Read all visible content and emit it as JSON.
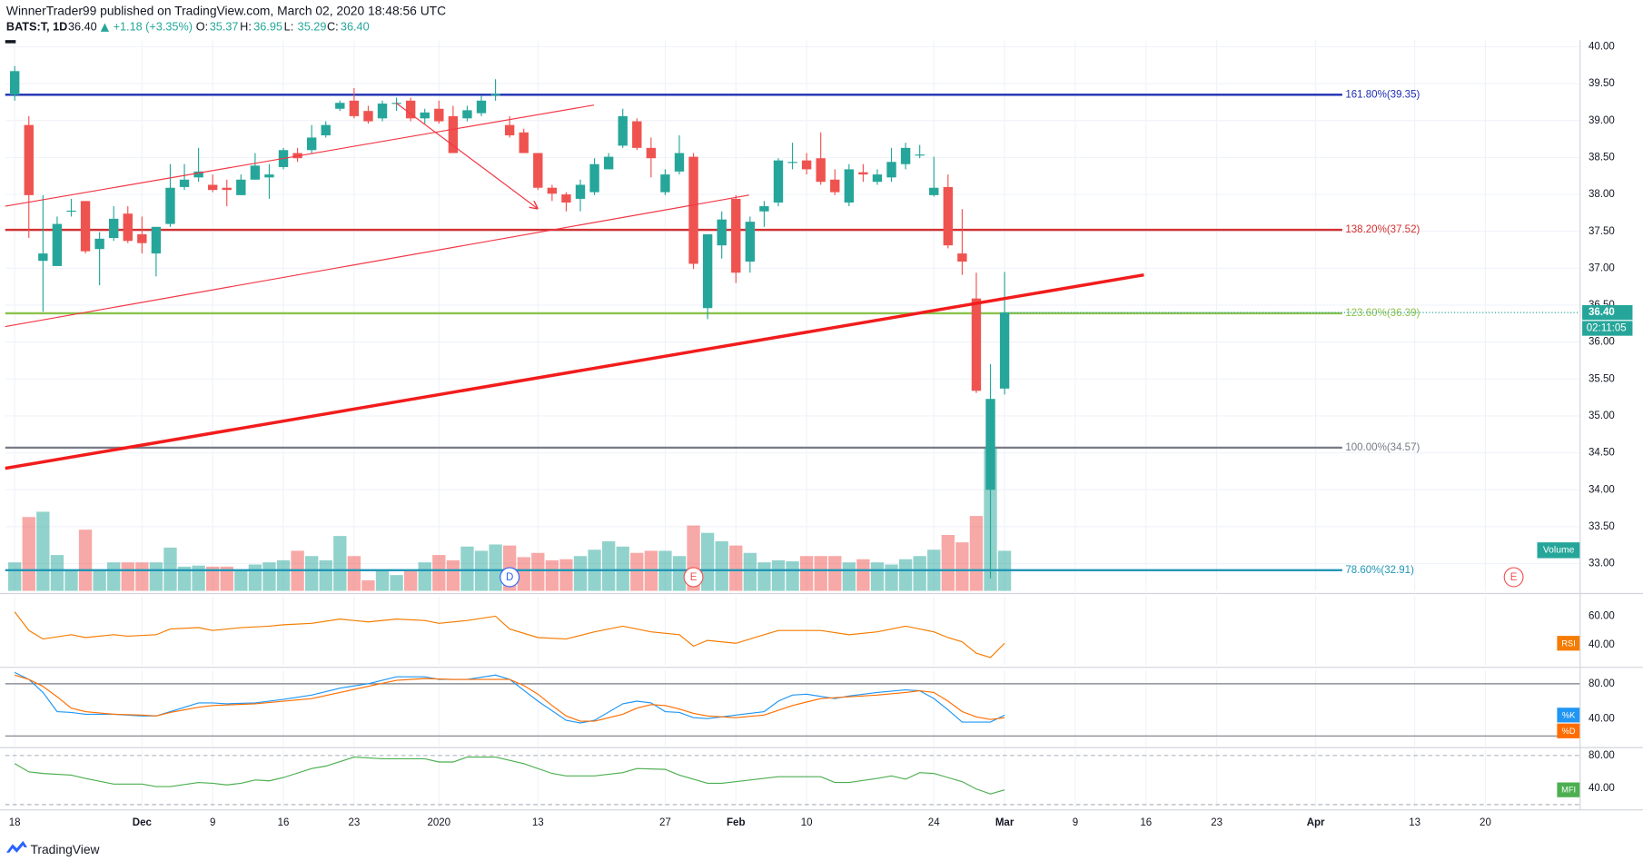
{
  "header": {
    "publisher": "WinnerTrader99 published on TradingView.com, March 02, 2020 18:48:56 UTC",
    "symbol": "BATS:T, 1D",
    "last": "36.40",
    "change": "+1.18 (+3.35%)",
    "ohlc": [
      {
        "label": "O:",
        "value": "35.37"
      },
      {
        "label": "H:",
        "value": "36.95"
      },
      {
        "label": "L:",
        "value": "35.29"
      },
      {
        "label": "C:",
        "value": "36.40"
      }
    ]
  },
  "footer": {
    "brand": "TradingView"
  },
  "chart_data": [
    {
      "type": "candlestick",
      "open": [
        39.35,
        38.94,
        37.1,
        37.03,
        37.77,
        37.91,
        37.26,
        37.41,
        37.74,
        37.46,
        37.2,
        37.6,
        38.1,
        38.23,
        38.13,
        38.09,
        37.99,
        38.2,
        38.23,
        38.37,
        38.56,
        38.6,
        38.8,
        39.16,
        39.27,
        39.13,
        39.03,
        39.23,
        39.27,
        39.03,
        39.16,
        39.06,
        39.03,
        39.1,
        39.34,
        38.94,
        38.84,
        38.56,
        38.09,
        38.0,
        37.94,
        38.03,
        38.34,
        38.66,
        38.99,
        38.63,
        38.03,
        38.31,
        38.51,
        36.46,
        37.31,
        37.94,
        37.09,
        37.77,
        37.89,
        38.44,
        38.46,
        38.49,
        38.2,
        37.89,
        38.3,
        38.17,
        38.23,
        38.41,
        38.53,
        37.99,
        38.1,
        37.2,
        36.59,
        34.0,
        35.37
      ],
      "high": [
        39.74,
        39.06,
        37.99,
        37.7,
        37.94,
        37.91,
        37.49,
        37.84,
        37.84,
        37.7,
        37.56,
        38.41,
        38.41,
        38.63,
        38.27,
        38.2,
        38.27,
        38.56,
        38.41,
        38.63,
        38.63,
        38.94,
        38.99,
        39.27,
        39.44,
        39.2,
        39.27,
        39.31,
        39.31,
        39.16,
        39.27,
        39.2,
        39.2,
        39.34,
        39.56,
        39.06,
        38.89,
        38.56,
        38.13,
        38.03,
        38.2,
        38.49,
        38.56,
        39.16,
        39.03,
        38.77,
        38.34,
        38.8,
        38.56,
        37.46,
        37.77,
        37.99,
        37.7,
        37.91,
        38.49,
        38.7,
        38.56,
        38.84,
        38.34,
        38.41,
        38.41,
        38.34,
        38.63,
        38.7,
        38.67,
        38.51,
        38.27,
        37.8,
        36.94,
        35.7,
        36.95
      ],
      "low": [
        39.27,
        37.41,
        36.41,
        37.03,
        37.7,
        37.2,
        36.77,
        37.37,
        37.34,
        37.2,
        36.89,
        37.56,
        38.06,
        38.17,
        38.03,
        37.84,
        37.99,
        38.2,
        37.94,
        38.34,
        38.44,
        38.56,
        38.77,
        39.13,
        39.03,
        38.96,
        38.99,
        39.13,
        38.99,
        38.96,
        38.96,
        38.56,
        38.99,
        39.06,
        39.27,
        38.77,
        38.56,
        38.06,
        37.91,
        37.77,
        37.77,
        37.99,
        38.34,
        38.63,
        38.6,
        38.23,
        37.99,
        38.27,
        36.99,
        36.31,
        37.13,
        36.8,
        36.94,
        37.56,
        37.84,
        38.34,
        38.27,
        38.13,
        37.99,
        37.84,
        38.17,
        38.13,
        38.17,
        38.34,
        38.49,
        37.97,
        37.27,
        36.91,
        35.31,
        32.8,
        35.29
      ],
      "close": [
        39.67,
        37.99,
        37.2,
        37.6,
        37.78,
        37.23,
        37.4,
        37.67,
        37.37,
        37.34,
        37.56,
        38.09,
        38.2,
        38.31,
        38.06,
        38.06,
        38.2,
        38.39,
        38.27,
        38.6,
        38.49,
        38.77,
        38.94,
        39.24,
        39.06,
        38.99,
        39.23,
        39.24,
        39.03,
        39.11,
        38.99,
        38.56,
        39.14,
        39.27,
        39.36,
        38.8,
        38.56,
        38.09,
        38.01,
        37.89,
        38.13,
        38.41,
        38.51,
        39.06,
        38.63,
        38.49,
        38.27,
        38.56,
        37.06,
        37.46,
        37.66,
        36.94,
        37.63,
        37.84,
        38.46,
        38.44,
        38.34,
        38.17,
        38.03,
        38.34,
        38.27,
        38.27,
        38.44,
        38.63,
        38.54,
        38.09,
        37.31,
        37.09,
        35.34,
        35.23,
        36.4
      ],
      "up_color": "#26a69a",
      "down_color": "#ef5350",
      "volume": {
        "name": "Volume",
        "ylim": [
          0,
          100
        ],
        "values": [
          27,
          70,
          75,
          34,
          19,
          58,
          19,
          27,
          27,
          27,
          27,
          41,
          23,
          24,
          23,
          23,
          19,
          25,
          27,
          29,
          38,
          33,
          29,
          52,
          33,
          10,
          19,
          15,
          19,
          27,
          34,
          29,
          42,
          38,
          44,
          43,
          32,
          36,
          29,
          30,
          33,
          39,
          47,
          42,
          36,
          38,
          38,
          33,
          62,
          55,
          47,
          43,
          36,
          27,
          29,
          28,
          33,
          33,
          33,
          27,
          30,
          27,
          25,
          30,
          33,
          39,
          53,
          46,
          71,
          135,
          38
        ]
      },
      "xlim": [
        -0.67,
        110.7
      ],
      "xticks": [
        {
          "value": 0,
          "label": "18"
        },
        {
          "value": 9,
          "label": "Dec"
        },
        {
          "value": 14,
          "label": "9"
        },
        {
          "value": 19,
          "label": "16"
        },
        {
          "value": 24,
          "label": "23"
        },
        {
          "value": 30,
          "label": "2020"
        },
        {
          "value": 37,
          "label": "13"
        },
        {
          "value": 46,
          "label": "27"
        },
        {
          "value": 51,
          "label": "Feb"
        },
        {
          "value": 56,
          "label": "10"
        },
        {
          "value": 65,
          "label": "24"
        },
        {
          "value": 70,
          "label": "Mar"
        },
        {
          "value": 75,
          "label": "9"
        },
        {
          "value": 80,
          "label": "16"
        },
        {
          "value": 85,
          "label": "23"
        },
        {
          "value": 92,
          "label": "Apr"
        },
        {
          "value": 99,
          "label": "13"
        },
        {
          "value": 104,
          "label": "20"
        }
      ],
      "ylim": [
        32.63,
        40.09
      ],
      "yticks": [
        {
          "value": 40,
          "label": "40.00"
        },
        {
          "value": 39.5,
          "label": "39.50"
        },
        {
          "value": 39,
          "label": "39.00"
        },
        {
          "value": 38.5,
          "label": "38.50"
        },
        {
          "value": 38,
          "label": "38.00"
        },
        {
          "value": 37.5,
          "label": "37.50"
        },
        {
          "value": 37,
          "label": "37.00"
        },
        {
          "value": 36.5,
          "label": "36.50"
        },
        {
          "value": 36,
          "label": "36.00"
        },
        {
          "value": 35.5,
          "label": "35.50"
        },
        {
          "value": 35,
          "label": "35.00"
        },
        {
          "value": 34.5,
          "label": "34.50"
        },
        {
          "value": 34,
          "label": "34.00"
        },
        {
          "value": 33.5,
          "label": "33.50"
        },
        {
          "value": 33,
          "label": "33.00"
        }
      ],
      "grid": true,
      "levels": [
        {
          "value": 39.35,
          "label": "161.80%(39.35)",
          "color": "#1e2fb4"
        },
        {
          "value": 37.52,
          "label": "138.20%(37.52)",
          "color": "#d32f2f"
        },
        {
          "value": 36.39,
          "label": "123.60%(36.39)",
          "color": "#8bc34a"
        },
        {
          "value": 34.57,
          "label": "100.00%(34.57)",
          "color": "#787b86"
        },
        {
          "value": 32.91,
          "label": "78.60%(32.91)",
          "color": "#2196b6"
        }
      ],
      "trendlines": [
        {
          "x": [
            -0.67,
            79.85
          ],
          "y": [
            34.29,
            36.91
          ],
          "color": "#f21c1c",
          "width": 3
        },
        {
          "x": [
            -0.67,
            40.96
          ],
          "y": [
            37.84,
            39.21
          ],
          "color": "#f23645",
          "width": 1
        },
        {
          "x": [
            -0.67,
            51.93
          ],
          "y": [
            36.21,
            37.99
          ],
          "color": "#f23645",
          "width": 1
        },
        {
          "x": [
            26.96,
            36.96
          ],
          "y": [
            39.24,
            37.81
          ],
          "color": "#f23645",
          "width": 1,
          "arrow": true
        }
      ],
      "last_price": {
        "value": 36.4,
        "label": "36.40",
        "countdown": "02:11:05",
        "color": "#26a69a"
      },
      "events": [
        {
          "x": 35,
          "label": "D",
          "color": "#2962ff"
        },
        {
          "x": 48,
          "label": "E",
          "color": "#ef5350"
        },
        {
          "x": 106,
          "label": "E",
          "color": "#ef5350"
        }
      ]
    },
    {
      "type": "line",
      "ylim": [
        25.9,
        74.1
      ],
      "yticks": [
        {
          "value": 60,
          "label": "60.00"
        },
        {
          "value": 40,
          "label": "40.00"
        }
      ],
      "series": [
        {
          "name": "RSI",
          "color": "#f57c00",
          "x": [
            0,
            1,
            2,
            4,
            5,
            7,
            8,
            10,
            11,
            13,
            14,
            16,
            18,
            19,
            21,
            23,
            24,
            25,
            27,
            29,
            30,
            32,
            34,
            35,
            37,
            39,
            41,
            43,
            45,
            47,
            48,
            49,
            51,
            53,
            54,
            57,
            59,
            61,
            63,
            65,
            66,
            67,
            68,
            69,
            70
          ],
          "values": [
            63,
            50,
            44,
            47,
            45,
            47,
            46,
            47,
            51,
            52,
            50,
            52,
            53,
            54,
            55,
            58,
            57,
            56,
            58,
            57,
            55,
            57,
            60,
            51,
            45,
            44,
            49,
            53,
            49,
            47,
            39,
            43,
            41,
            47,
            50,
            50,
            47,
            49,
            53,
            49,
            45,
            42,
            34,
            31,
            41
          ]
        }
      ]
    },
    {
      "type": "line",
      "ylim": [
        8.5,
        95.8
      ],
      "yticks": [
        {
          "value": 80,
          "label": "80.00"
        },
        {
          "value": 40,
          "label": "40.00"
        }
      ],
      "bands": [
        80,
        20
      ],
      "band_style": "solid",
      "series": [
        {
          "name": "%K",
          "color": "#2196f3",
          "x": [
            0,
            1,
            2,
            3,
            4,
            5,
            7,
            9,
            10,
            11,
            13,
            14,
            15,
            17,
            19,
            21,
            23,
            25,
            27,
            29,
            30,
            32,
            34,
            35,
            37,
            39,
            40,
            41,
            43,
            44,
            45,
            46,
            47,
            48,
            49,
            50,
            51,
            53,
            54,
            55,
            56,
            58,
            59,
            61,
            63,
            64,
            65,
            66,
            67,
            68,
            69,
            70
          ],
          "values": [
            93,
            85,
            70,
            48,
            47,
            45,
            45,
            43,
            43,
            48,
            58,
            58,
            57,
            58,
            62,
            67,
            75,
            80,
            88,
            88,
            85,
            85,
            90,
            85,
            60,
            38,
            35,
            38,
            57,
            60,
            58,
            48,
            47,
            41,
            40,
            42,
            44,
            48,
            60,
            67,
            68,
            63,
            66,
            70,
            73,
            72,
            63,
            50,
            36,
            36,
            36,
            44
          ]
        },
        {
          "name": "%D",
          "color": "#ff6d00",
          "x": [
            0,
            1,
            2,
            3,
            4,
            5,
            7,
            9,
            10,
            11,
            13,
            14,
            17,
            19,
            21,
            23,
            25,
            27,
            29,
            31,
            33,
            35,
            36,
            37,
            38,
            39,
            40,
            41,
            43,
            44,
            45,
            46,
            47,
            48,
            49,
            51,
            53,
            55,
            57,
            59,
            61,
            63,
            64,
            65,
            66,
            67,
            68,
            69,
            70
          ],
          "values": [
            90,
            85,
            77,
            65,
            52,
            48,
            45,
            44,
            43,
            47,
            53,
            55,
            57,
            60,
            63,
            70,
            77,
            84,
            86,
            85,
            85,
            85,
            78,
            68,
            55,
            43,
            37,
            37,
            45,
            52,
            56,
            55,
            51,
            46,
            43,
            41,
            44,
            55,
            63,
            65,
            67,
            70,
            72,
            70,
            60,
            48,
            42,
            39,
            41
          ]
        }
      ]
    },
    {
      "type": "line",
      "ylim": [
        16.8,
        87.7
      ],
      "yticks": [
        {
          "value": 80,
          "label": "80.00"
        },
        {
          "value": 40,
          "label": "40.00"
        }
      ],
      "bands": [
        80,
        20
      ],
      "band_style": "dashed",
      "series": [
        {
          "name": "MFI",
          "color": "#4caf50",
          "x": [
            0,
            1,
            2,
            4,
            5,
            7,
            9,
            10,
            11,
            13,
            14,
            15,
            16,
            17,
            18,
            19,
            21,
            22,
            24,
            26,
            29,
            30,
            31,
            32,
            34,
            36,
            38,
            39,
            41,
            43,
            44,
            46,
            47,
            48,
            49,
            50,
            52,
            54,
            57,
            58,
            59,
            61,
            62,
            63,
            64,
            65,
            66,
            67,
            68,
            69,
            70
          ],
          "values": [
            70,
            60,
            58,
            56,
            52,
            45,
            45,
            42,
            42,
            47,
            46,
            44,
            46,
            50,
            49,
            53,
            64,
            67,
            78,
            76,
            76,
            72,
            72,
            78,
            78,
            70,
            58,
            55,
            55,
            59,
            64,
            63,
            56,
            51,
            46,
            46,
            50,
            54,
            54,
            47,
            47,
            52,
            55,
            51,
            59,
            58,
            53,
            48,
            39,
            33,
            38
          ]
        }
      ]
    }
  ]
}
